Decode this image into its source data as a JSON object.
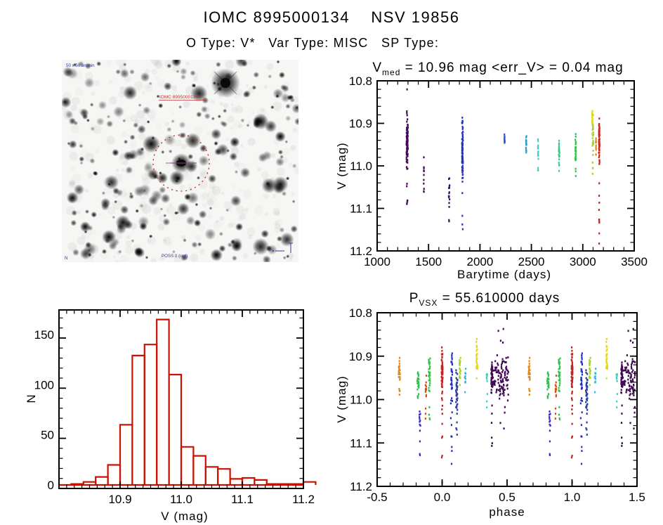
{
  "page": {
    "title": "IOMC 8995000134    NSV 19856",
    "subtitle": "O Type: V*   Var Type: MISC   SP Type:"
  },
  "finding_chart": {
    "kind": "negative grayscale star field",
    "target_circle_color": "#c43030",
    "label_source_red": "IOMC 8995000134",
    "label_top_left": "50 x 50 arcmin",
    "label_bottom": "POSS II (red)",
    "label_bottom_left": "N",
    "scale_label": "1'",
    "annotation_blue": "#333a99"
  },
  "chart_data": [
    {
      "type": "scatter",
      "name": "lightcurve",
      "title": "V_med = 10.96 mag <err_V> = 0.04 mag",
      "title_parts": {
        "prefix": "V",
        "sub": "med",
        "rest": " = 10.96 mag <err_V> = 0.04 mag"
      },
      "xlabel": "Barytime (days)",
      "ylabel": "V (mag)",
      "xlim": [
        1000,
        3500
      ],
      "ylim_top_to_bottom": [
        10.8,
        11.2
      ],
      "xticks": [
        1000,
        1500,
        2000,
        2500,
        3000,
        3500
      ],
      "xtick_labels": [
        "1000",
        "1500",
        "2000",
        "2500",
        "3000",
        "3500"
      ],
      "yticks": [
        10.8,
        10.9,
        11.0,
        11.1,
        11.2
      ],
      "ytick_labels": [
        "10.8",
        "10.9",
        "11.0",
        "11.1",
        "11.2"
      ],
      "x_minor": 100,
      "y_minor": 0.02,
      "grid": false,
      "clusters": [
        {
          "t": 1292,
          "w": 14,
          "n": 90,
          "v": [
            10.87,
            11.015
          ],
          "tail": [
            10.82,
            11.11
          ],
          "nt": 14,
          "color": "#420a54"
        },
        {
          "t": 1455,
          "w": 5,
          "n": 9,
          "v": [
            10.975,
            11.07
          ],
          "tail": [
            10.96,
            11.07
          ],
          "nt": 2,
          "color": "#420a54"
        },
        {
          "t": 1700,
          "w": 9,
          "n": 12,
          "v": [
            11.0,
            11.09
          ],
          "tail": [
            10.94,
            11.145
          ],
          "nt": 5,
          "color": "#3a1468"
        },
        {
          "t": 1830,
          "w": 10,
          "n": 80,
          "v": [
            10.875,
            11.05
          ],
          "tail": [
            10.86,
            11.15
          ],
          "nt": 10,
          "color": "#2433c6"
        },
        {
          "t": 2240,
          "w": 5,
          "n": 13,
          "v": [
            10.91,
            10.96
          ],
          "tail": [
            10.905,
            10.965
          ],
          "nt": 2,
          "color": "#2a55d4"
        },
        {
          "t": 2450,
          "w": 5,
          "n": 13,
          "v": [
            10.925,
            10.97
          ],
          "tail": [
            10.92,
            10.975
          ],
          "nt": 2,
          "color": "#2e9ecb"
        },
        {
          "t": 2565,
          "w": 5,
          "n": 13,
          "v": [
            10.925,
            11.0
          ],
          "tail": [
            10.99,
            11.035
          ],
          "nt": 4,
          "color": "#3fcfc3"
        },
        {
          "t": 2770,
          "w": 7,
          "n": 22,
          "v": [
            10.925,
            11.0
          ],
          "tail": [
            10.99,
            11.015
          ],
          "nt": 3,
          "color": "#35c98c"
        },
        {
          "t": 2930,
          "w": 7,
          "n": 28,
          "v": [
            10.92,
            11.01
          ],
          "tail": [
            11.0,
            11.04
          ],
          "nt": 3,
          "color": "#32c24d"
        },
        {
          "t": 3098,
          "w": 9,
          "n": 30,
          "v": [
            10.87,
            10.995
          ],
          "tail": [
            10.99,
            11.02
          ],
          "nt": 4,
          "color": "#a6d327"
        },
        {
          "t": 3092,
          "w": 5,
          "n": 14,
          "v": [
            10.855,
            10.93
          ],
          "tail": [
            10.85,
            10.94
          ],
          "nt": 2,
          "color": "#e6d714"
        },
        {
          "t": 3128,
          "w": 4,
          "n": 10,
          "v": [
            10.92,
            11.0
          ],
          "tail": [
            10.95,
            11.0
          ],
          "nt": 2,
          "color": "#e2881c"
        },
        {
          "t": 3160,
          "w": 7,
          "n": 55,
          "v": [
            10.885,
            11.0
          ],
          "tail": [
            10.85,
            11.19
          ],
          "nt": 18,
          "color": "#c42420"
        }
      ]
    },
    {
      "type": "histogram",
      "name": "magnitude-distribution",
      "color": "#cc1100",
      "xlabel": "V (mag)",
      "ylabel": "N",
      "bin_start": 10.82,
      "bin_width": 0.02,
      "counts": [
        1,
        3,
        8,
        20,
        60,
        129,
        140,
        165,
        110,
        38,
        29,
        18,
        16,
        6,
        7,
        5,
        1,
        1,
        1,
        3
      ],
      "xlim": [
        10.8,
        11.2
      ],
      "ylim": [
        -3.5,
        174.5
      ],
      "xticks": [
        10.9,
        11.0,
        11.1,
        11.2
      ],
      "xtick_labels": [
        "10.9",
        "11.0",
        "11.1",
        "11.2"
      ],
      "yticks": [
        0,
        50,
        100,
        150
      ],
      "ytick_labels": [
        "0",
        "50",
        "100",
        "150"
      ],
      "x_minor": 0.0125,
      "y_minor": 10,
      "grid": false
    },
    {
      "type": "scatter",
      "name": "phase-folded",
      "title": "P_VSX = 55.610000 days",
      "title_parts": {
        "prefix": "P",
        "sub": "VSX",
        "rest": " = 55.610000 days"
      },
      "period_days": 55.61,
      "xlabel": "phase",
      "ylabel": "V (mag)",
      "xlim": [
        -0.5,
        1.5
      ],
      "ylim_top_to_bottom": [
        10.8,
        11.2
      ],
      "xticks": [
        -0.5,
        0.0,
        0.5,
        1.0,
        1.5
      ],
      "xtick_labels": [
        "-0.5",
        "0.0",
        "0.5",
        "1.0",
        "1.5"
      ],
      "yticks": [
        10.8,
        10.9,
        11.0,
        11.1,
        11.2
      ],
      "ytick_labels": [
        "10.8",
        "10.9",
        "11.0",
        "11.1",
        "11.2"
      ],
      "x_minor": 0.1,
      "y_minor": 0.02,
      "grid": false,
      "repeat_offsets": [
        -1,
        0,
        1
      ],
      "clusters": [
        {
          "p": -0.33,
          "w": 0.012,
          "n": 24,
          "v": [
            10.9,
            10.985
          ],
          "tail": [
            10.97,
            10.99
          ],
          "nt": 2,
          "color": "#e2881c"
        },
        {
          "p": -0.185,
          "w": 0.013,
          "n": 26,
          "v": [
            10.915,
            11.005
          ],
          "tail": [
            10.99,
            11.01
          ],
          "nt": 2,
          "color": "#32c24d"
        },
        {
          "p": -0.172,
          "w": 0.01,
          "n": 10,
          "v": [
            11.0,
            11.09
          ],
          "tail": [
            11.09,
            11.145
          ],
          "nt": 3,
          "color": "#3a2db8"
        },
        {
          "p": -0.125,
          "w": 0.008,
          "n": 12,
          "v": [
            10.93,
            11.01
          ],
          "tail": [
            11.0,
            11.045
          ],
          "nt": 3,
          "color": "#d4500f"
        },
        {
          "p": -0.098,
          "w": 0.013,
          "n": 30,
          "v": [
            10.885,
            11.01
          ],
          "tail": [
            11.0,
            11.05
          ],
          "nt": 4,
          "color": "#32c24d"
        },
        {
          "p": 0.0,
          "w": 0.01,
          "n": 55,
          "v": [
            10.88,
            11.005
          ],
          "tail": [
            10.85,
            11.2
          ],
          "nt": 18,
          "color": "#c42420"
        },
        {
          "p": 0.073,
          "w": 0.012,
          "n": 30,
          "v": [
            10.86,
            11.05
          ],
          "tail": [
            11.05,
            11.15
          ],
          "nt": 6,
          "color": "#2433c6"
        },
        {
          "p": 0.112,
          "w": 0.014,
          "n": 36,
          "v": [
            10.92,
            11.055
          ],
          "tail": [
            11.05,
            11.1
          ],
          "nt": 4,
          "color": "#2a3f9f"
        },
        {
          "p": 0.138,
          "w": 0.01,
          "n": 18,
          "v": [
            10.89,
            10.97
          ],
          "tail": [
            10.955,
            10.97
          ],
          "nt": 1,
          "color": "#a6d327"
        },
        {
          "p": 0.178,
          "w": 0.008,
          "n": 10,
          "v": [
            10.925,
            10.98
          ],
          "tail": [
            10.97,
            10.985
          ],
          "nt": 1,
          "color": "#37b6d8"
        },
        {
          "p": 0.268,
          "w": 0.01,
          "n": 22,
          "v": [
            10.85,
            10.96
          ],
          "tail": [
            10.95,
            10.965
          ],
          "nt": 1,
          "color": "#e6d714"
        },
        {
          "p": 0.345,
          "w": 0.008,
          "n": 9,
          "v": [
            10.92,
            11.005
          ],
          "tail": [
            11.0,
            11.04
          ],
          "nt": 2,
          "color": "#3fcfc3"
        },
        {
          "p": 0.385,
          "w": 0.016,
          "n": 45,
          "v": [
            10.9,
            11.0
          ],
          "tail": [
            11.0,
            11.12
          ],
          "nt": 6,
          "color": "#420a54"
        },
        {
          "p": 0.455,
          "w": 0.11,
          "n": 95,
          "v": [
            10.88,
            11.02
          ],
          "tail": [
            10.82,
            11.08
          ],
          "nt": 12,
          "color": "#420a54"
        }
      ]
    }
  ]
}
